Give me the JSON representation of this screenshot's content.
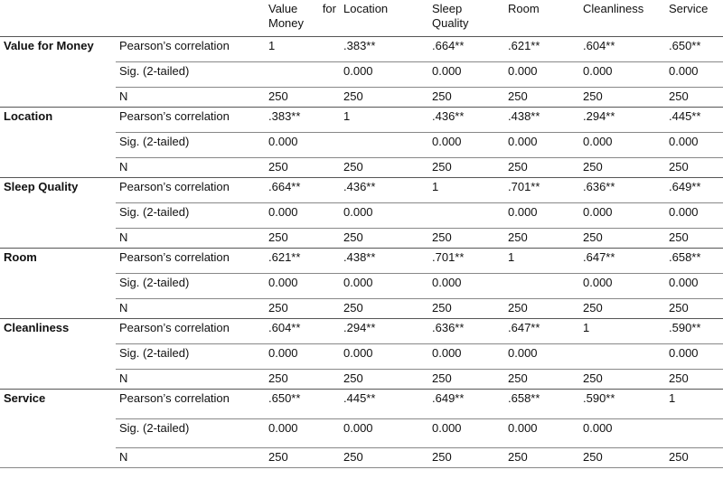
{
  "table": {
    "columns": [
      "Value for Money",
      "Location",
      "Sleep Quality",
      "Room",
      "Cleanliness",
      "Service"
    ],
    "groups": [
      {
        "label": "Value for Money",
        "rows": [
          {
            "stat": "Pearson’s correlation",
            "cells": [
              "1",
              ".383**",
              ".664**",
              ".621**",
              ".604**",
              ".650**"
            ]
          },
          {
            "stat": "Sig. (2-tailed)",
            "cells": [
              null,
              "0.000",
              "0.000",
              "0.000",
              "0.000",
              "0.000"
            ]
          },
          {
            "stat": "N",
            "cells": [
              "250",
              "250",
              "250",
              "250",
              "250",
              "250"
            ]
          }
        ]
      },
      {
        "label": "Location",
        "rows": [
          {
            "stat": "Pearson’s correlation",
            "cells": [
              ".383**",
              "1",
              ".436**",
              ".438**",
              ".294**",
              ".445**"
            ]
          },
          {
            "stat": "Sig. (2-tailed)",
            "cells": [
              "0.000",
              null,
              "0.000",
              "0.000",
              "0.000",
              "0.000"
            ]
          },
          {
            "stat": "N",
            "cells": [
              "250",
              "250",
              "250",
              "250",
              "250",
              "250"
            ]
          }
        ]
      },
      {
        "label": "Sleep Quality",
        "rows": [
          {
            "stat": "Pearson’s correlation",
            "cells": [
              ".664**",
              ".436**",
              "1",
              ".701**",
              ".636**",
              ".649**"
            ]
          },
          {
            "stat": "Sig. (2-tailed)",
            "cells": [
              "0.000",
              "0.000",
              null,
              "0.000",
              "0.000",
              "0.000"
            ]
          },
          {
            "stat": "N",
            "cells": [
              "250",
              "250",
              "250",
              "250",
              "250",
              "250"
            ]
          }
        ]
      },
      {
        "label": "Room",
        "rows": [
          {
            "stat": "Pearson’s correlation",
            "cells": [
              ".621**",
              ".438**",
              ".701**",
              "1",
              ".647**",
              ".658**"
            ]
          },
          {
            "stat": "Sig. (2-tailed)",
            "cells": [
              "0.000",
              "0.000",
              "0.000",
              null,
              "0.000",
              "0.000"
            ]
          },
          {
            "stat": "N",
            "cells": [
              "250",
              "250",
              "250",
              "250",
              "250",
              "250"
            ]
          }
        ]
      },
      {
        "label": "Cleanliness",
        "rows": [
          {
            "stat": "Pearson’s correlation",
            "cells": [
              ".604**",
              ".294**",
              ".636**",
              ".647**",
              "1",
              ".590**"
            ]
          },
          {
            "stat": "Sig. (2-tailed)",
            "cells": [
              "0.000",
              "0.000",
              "0.000",
              "0.000",
              null,
              "0.000"
            ]
          },
          {
            "stat": "N",
            "cells": [
              "250",
              "250",
              "250",
              "250",
              "250",
              "250"
            ]
          }
        ]
      },
      {
        "label": "Service",
        "rows": [
          {
            "stat": "Pearson’s correlation",
            "cells": [
              ".650**",
              ".445**",
              ".649**",
              ".658**",
              ".590**",
              "1"
            ]
          },
          {
            "stat": "Sig. (2-tailed)",
            "cells": [
              "0.000",
              "0.000",
              "0.000",
              "0.000",
              "0.000",
              null
            ]
          },
          {
            "stat": "N",
            "cells": [
              "250",
              "250",
              "250",
              "250",
              "250",
              "250"
            ]
          }
        ]
      }
    ]
  }
}
